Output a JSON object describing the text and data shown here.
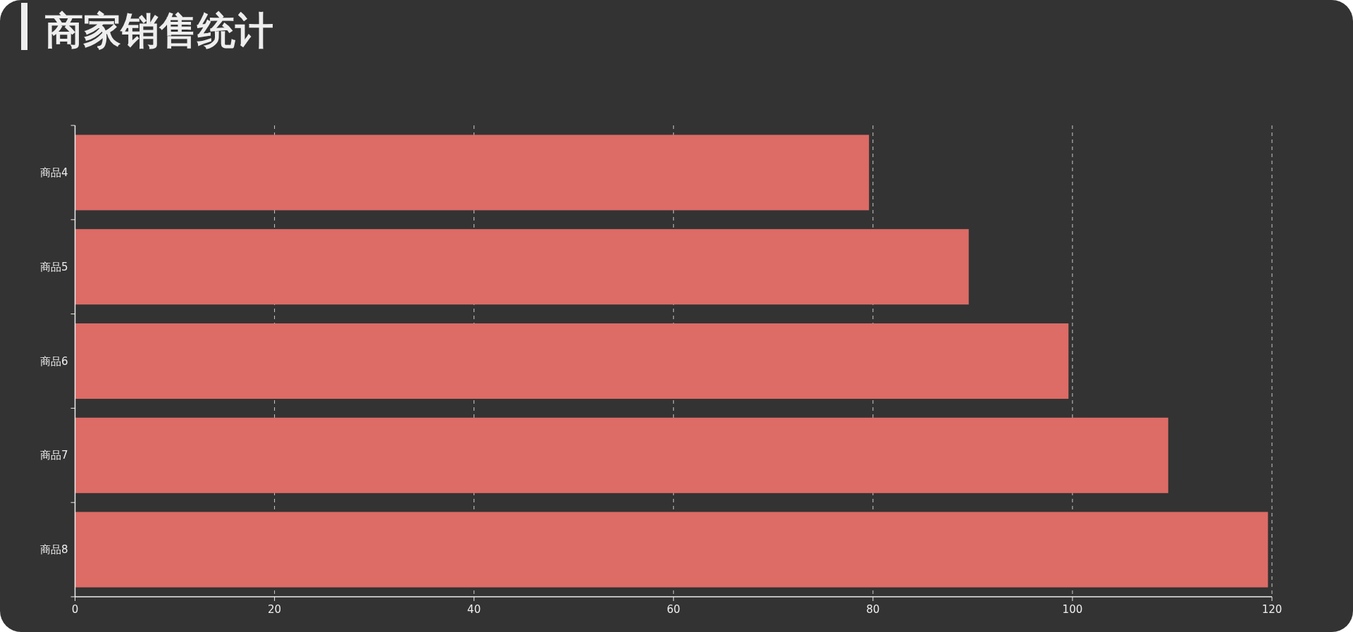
{
  "chart_data": {
    "type": "bar",
    "orientation": "horizontal",
    "title": "商家销售统计",
    "categories": [
      "商品4",
      "商品5",
      "商品6",
      "商品7",
      "商品8"
    ],
    "values": [
      79.6,
      89.6,
      99.6,
      109.6,
      119.6
    ],
    "color": "#dd6b66",
    "xlim": [
      0,
      120
    ],
    "xticks": [
      0,
      20,
      40,
      60,
      80,
      100,
      120
    ],
    "grid": "x"
  }
}
